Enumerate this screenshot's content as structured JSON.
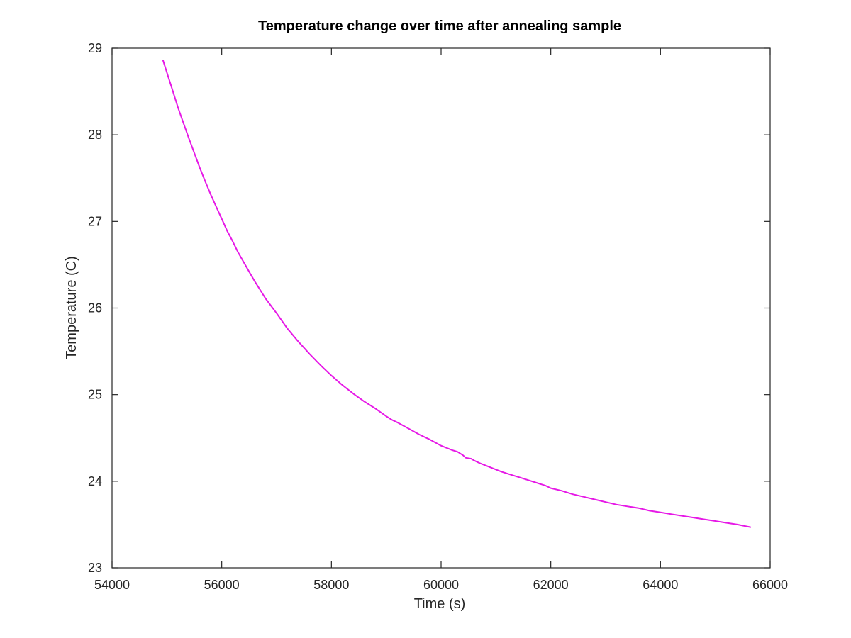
{
  "chart_data": {
    "type": "line",
    "title": "Temperature change over time after annealing sample",
    "xlabel": "Time (s)",
    "ylabel": "Temperature (C)",
    "xlim": [
      54000,
      66000
    ],
    "ylim": [
      23,
      29
    ],
    "xticks": [
      54000,
      56000,
      58000,
      60000,
      62000,
      64000,
      66000
    ],
    "yticks": [
      23,
      24,
      25,
      26,
      27,
      28,
      29
    ],
    "xtick_labels": [
      "54000",
      "56000",
      "58000",
      "60000",
      "62000",
      "64000",
      "66000"
    ],
    "ytick_labels": [
      "23",
      "24",
      "25",
      "26",
      "27",
      "28",
      "29"
    ],
    "grid": false,
    "legend": false,
    "box": true,
    "series": [
      {
        "color": "#e619e6",
        "x": [
          54930,
          55000,
          55100,
          55200,
          55300,
          55400,
          55500,
          55600,
          55700,
          55800,
          55900,
          56000,
          56100,
          56200,
          56300,
          56400,
          56500,
          56600,
          56800,
          57000,
          57200,
          57400,
          57500,
          57600,
          57800,
          58000,
          58200,
          58400,
          58600,
          58800,
          59000,
          59100,
          59200,
          59400,
          59600,
          59800,
          60000,
          60200,
          60300,
          60400,
          60450,
          60550,
          60600,
          60700,
          60900,
          61100,
          61300,
          61400,
          61600,
          61800,
          61900,
          62000,
          62200,
          62400,
          62600,
          62800,
          63000,
          63200,
          63400,
          63600,
          63800,
          64000,
          64100,
          64200,
          64400,
          64600,
          64800,
          65000,
          65200,
          65400,
          65640
        ],
        "y": [
          28.86,
          28.72,
          28.52,
          28.32,
          28.14,
          27.96,
          27.79,
          27.62,
          27.46,
          27.31,
          27.17,
          27.03,
          26.89,
          26.77,
          26.64,
          26.53,
          26.42,
          26.31,
          26.11,
          25.94,
          25.76,
          25.61,
          25.54,
          25.47,
          25.34,
          25.22,
          25.11,
          25.01,
          24.92,
          24.84,
          24.75,
          24.71,
          24.68,
          24.61,
          24.54,
          24.48,
          24.41,
          24.36,
          24.34,
          24.3,
          24.27,
          24.26,
          24.24,
          24.21,
          24.16,
          24.11,
          24.07,
          24.05,
          24.01,
          23.97,
          23.95,
          23.92,
          23.89,
          23.85,
          23.82,
          23.79,
          23.76,
          23.73,
          23.71,
          23.69,
          23.66,
          23.64,
          23.63,
          23.62,
          23.6,
          23.58,
          23.56,
          23.54,
          23.52,
          23.5,
          23.47
        ]
      }
    ]
  }
}
